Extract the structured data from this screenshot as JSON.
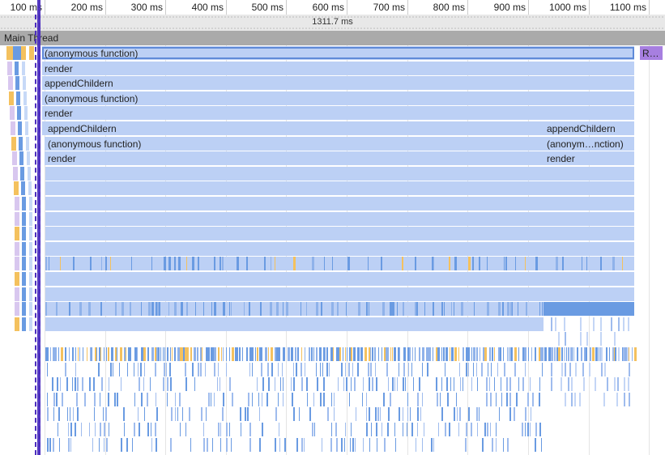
{
  "ruler": {
    "ticks": [
      "100 ms",
      "200 ms",
      "300 ms",
      "400 ms",
      "500 ms",
      "600 ms",
      "700 ms",
      "800 ms",
      "900 ms",
      "1000 ms",
      "1100 ms"
    ]
  },
  "duration": {
    "label": "1311.7 ms"
  },
  "thread": {
    "title": "Main Thread"
  },
  "flame": {
    "rows": [
      {
        "label": "(anonymous function)",
        "side": "R…"
      },
      {
        "label": "render"
      },
      {
        "label": "appendChildern"
      },
      {
        "label": "(anonymous function)"
      },
      {
        "label": "render"
      },
      {
        "label": "appendChildern",
        "right": "appendChildern"
      },
      {
        "label": "(anonymous function)",
        "right": "(anonym…nction)"
      },
      {
        "label": "render",
        "right": "render"
      }
    ]
  },
  "colors": {
    "block": "#bcd0f5",
    "blockDark": "#6a9be2",
    "yellow": "#f4c15e",
    "purple": "#a77fe0",
    "selection": "#4b2dbf",
    "header": "#aaaaaa"
  }
}
